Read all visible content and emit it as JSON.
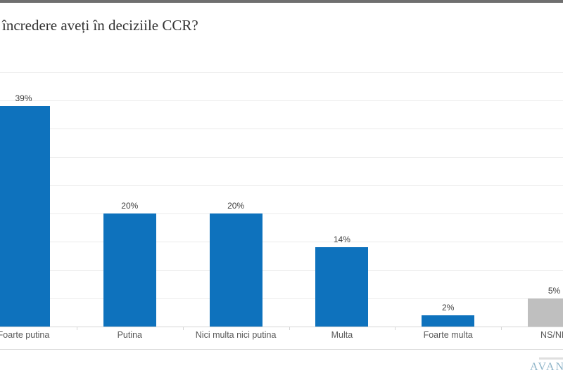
{
  "page": {
    "background": "#ffffff",
    "top_strip_color": "#6f6f6f"
  },
  "title": {
    "text": "încredere aveți în deciziile CCR?"
  },
  "chart_data": {
    "type": "bar",
    "title": "încredere aveți în deciziile CCR? (title cropped at left edge of screenshot)",
    "categories": [
      "Foarte putina",
      "Putina",
      "Nici multa nici putina",
      "Multa",
      "Foarte multa",
      "NS/NR"
    ],
    "values": [
      39,
      20,
      20,
      14,
      2,
      5
    ],
    "value_labels": [
      "39%",
      "20%",
      "20%",
      "14%",
      "2%",
      "5%"
    ],
    "bar_colors": [
      "#0e72bd",
      "#0e72bd",
      "#0e72bd",
      "#0e72bd",
      "#0e72bd",
      "#bfbfbf"
    ],
    "xlabel": "",
    "ylabel": "",
    "ylim": [
      0,
      45
    ],
    "gridline_step": 5,
    "grid": true,
    "legend": false,
    "colors": {
      "bar_blue": "#0e72bd",
      "bar_gray": "#bfbfbf",
      "gridline": "#ebebeb",
      "axis": "#d6d6d6",
      "value_label": "#3f3f3f",
      "category_label": "#595959"
    }
  },
  "logo": {
    "text": "AVAN",
    "color": "#8fb5c9"
  }
}
